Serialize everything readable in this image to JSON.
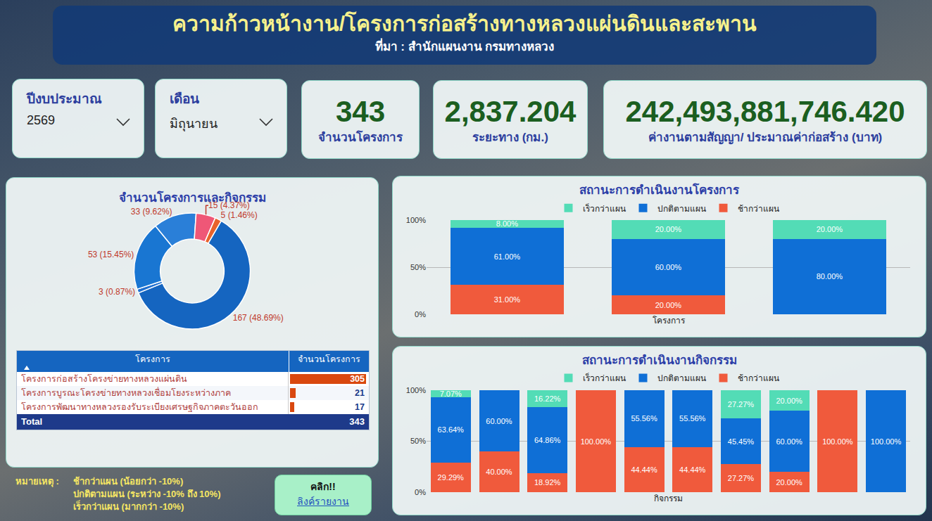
{
  "header": {
    "title": "ความก้าวหน้างาน/โครงการก่อสร้างทางหลวงแผ่นดินและสะพาน",
    "subtitle": "ที่มา : สำนักแผนงาน กรมทางหลวง"
  },
  "filters": [
    {
      "label": "ปีงบประมาณ",
      "value": "2569"
    },
    {
      "label": "เดือน",
      "value": "มิถุนายน"
    }
  ],
  "kpis": [
    {
      "value": "343",
      "label": "จำนวนโครงการ"
    },
    {
      "value": "2,837.204",
      "label": "ระยะทาง (กม.)"
    },
    {
      "value": "242,493,881,746.420",
      "label": "ค่างานตามสัญญา/ ประมาณค่าก่อสร้าง (บาท)"
    }
  ],
  "chart_data": [
    {
      "type": "pie",
      "title": "จำนวนโครงการและกิจกรรม",
      "values": [
        167,
        3,
        53,
        33,
        15,
        5
      ],
      "value_labels": [
        "167 (48.69%)",
        "3 (0.87%)",
        "53 (15.45%)",
        "33 (9.62%)",
        "15 (4.37%)",
        "5 (1.46%)"
      ],
      "colors": [
        "#1565c0",
        "#1e6fd0",
        "#1976d2",
        "#2a7fd8",
        "#ef5777",
        "#e8622c"
      ],
      "data_labels": true
    },
    {
      "type": "bar",
      "title": "สถานะการดำเนินงานโครงการ",
      "x_label": "โครงการ",
      "categories": [
        null,
        null,
        null
      ],
      "series": [
        {
          "name": "ช้ากว่าแผน",
          "color": "#f05a3c",
          "values": [
            31,
            20,
            null
          ],
          "value_labels": [
            "31.00%",
            "20.00%",
            null
          ]
        },
        {
          "name": "ปกติตามแผน",
          "color": "#0f6fd6",
          "values": [
            61,
            60,
            80
          ],
          "value_labels": [
            "61.00%",
            "60.00%",
            "80.00%"
          ]
        },
        {
          "name": "เร็วกว่าแผน",
          "color": "#53dcb6",
          "values": [
            8,
            20,
            20
          ],
          "value_labels": [
            "8.00%",
            "20.00%",
            "20.00%"
          ]
        }
      ],
      "ylim": [
        0,
        100
      ],
      "yticks": [
        {
          "value": 0,
          "label": "0%"
        },
        {
          "value": 50,
          "label": "50%"
        },
        {
          "value": 100,
          "label": "100%"
        }
      ],
      "stacked": true,
      "data_labels": true,
      "grid": true,
      "legend": "top",
      "tick_labels": "y"
    },
    {
      "type": "bar",
      "title": "สถานะการดำเนินงานกิจกรรม",
      "x_label": "กิจกรรม",
      "categories": [
        null,
        null,
        null,
        null,
        null,
        null,
        null,
        null,
        null,
        null
      ],
      "series": [
        {
          "name": "ช้ากว่าแผน",
          "color": "#f05a3c",
          "values": [
            29.29,
            40,
            18.92,
            100,
            44.44,
            44.44,
            27.27,
            20,
            100,
            null
          ],
          "value_labels": [
            "29.29%",
            "40.00%",
            "18.92%",
            "100.00%",
            "44.44%",
            "44.44%",
            "27.27%",
            "20.00%",
            "100.00%",
            null
          ]
        },
        {
          "name": "ปกติตามแผน",
          "color": "#0f6fd6",
          "values": [
            63.64,
            60,
            64.86,
            null,
            55.56,
            55.56,
            45.45,
            60,
            null,
            100
          ],
          "value_labels": [
            "63.64%",
            "60.00%",
            "64.86%",
            null,
            "55.56%",
            "55.56%",
            "45.45%",
            "60.00%",
            null,
            "100.00%"
          ]
        },
        {
          "name": "เร็วกว่าแผน",
          "color": "#53dcb6",
          "values": [
            7.07,
            null,
            16.22,
            null,
            null,
            null,
            27.27,
            20,
            null,
            null
          ],
          "value_labels": [
            "7.07%",
            null,
            "16.22%",
            null,
            null,
            null,
            "27.27%",
            "20.00%",
            null,
            null
          ]
        }
      ],
      "ylim": [
        0,
        100
      ],
      "yticks": [
        {
          "value": 0,
          "label": "0%"
        },
        {
          "value": 50,
          "label": "50%"
        },
        {
          "value": 100,
          "label": "100%"
        }
      ],
      "stacked": true,
      "data_labels": true,
      "grid": true,
      "legend": "top",
      "tick_labels": "y"
    }
  ],
  "table": {
    "header": [
      "โครงการ",
      "จำนวนโครงการ"
    ],
    "rows": [
      [
        "โครงการก่อสร้างโครงข่ายทางหลวงแผ่นดิน",
        305
      ],
      [
        "โครงการบูรณะโครงข่ายทางหลวงเชื่อมโยงระหว่างภาค",
        21
      ],
      [
        "โครงการพัฒนาทางหลวงรองรับระเบียงเศรษฐกิจภาคตะวันออก",
        17
      ]
    ],
    "total": [
      "Total",
      343
    ],
    "color": "#d9480f"
  },
  "notes": {
    "title": "หมายเหตุ :",
    "lines": [
      "ช้ากว่าแผน (น้อยกว่า -10%)",
      "ปกติตามแผน (ระหว่าง -10% ถึง 10%)",
      "เร็วกว่าแผน (มากกว่า -10%)"
    ]
  },
  "button": {
    "title": "คลิก!!",
    "link": "ลิงค์รายงาน"
  }
}
